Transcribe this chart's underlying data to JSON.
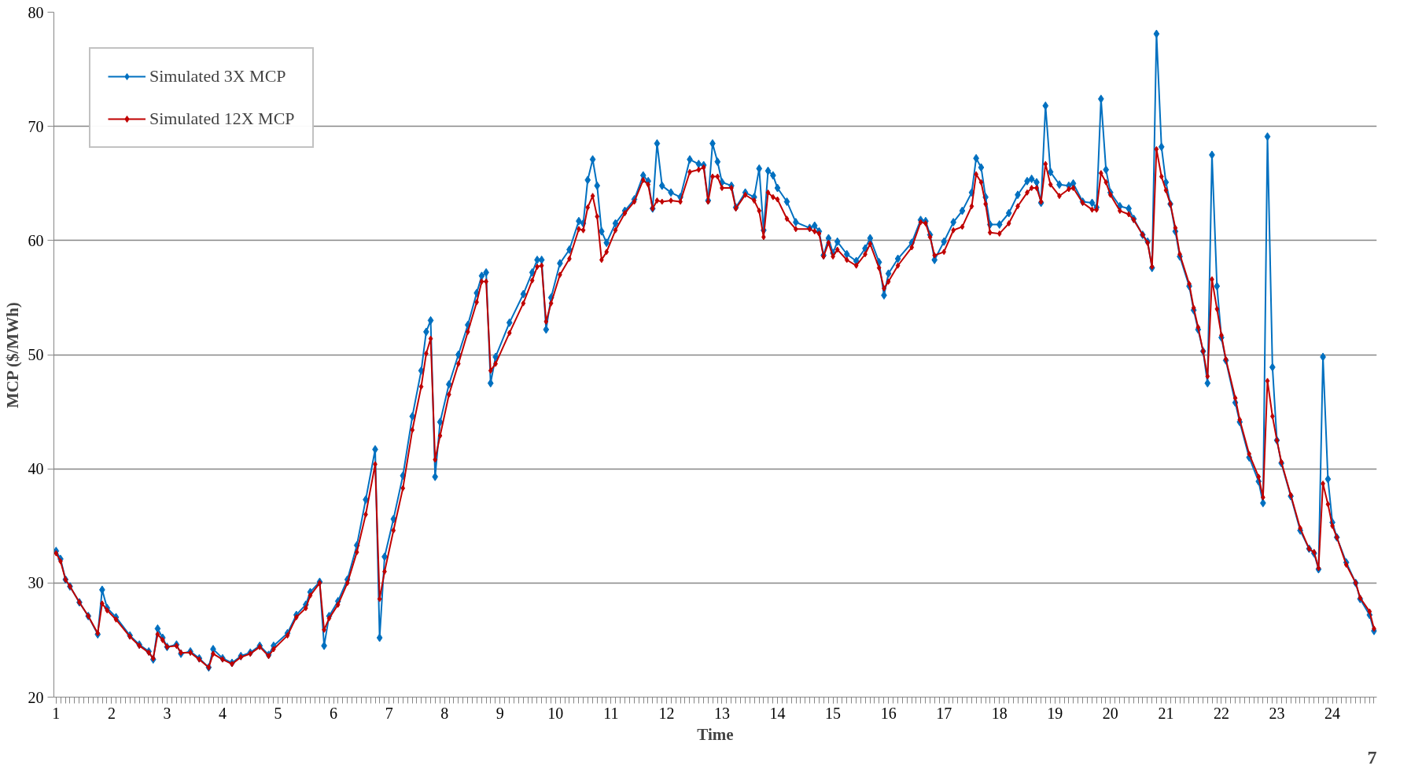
{
  "chart_data": {
    "type": "line",
    "xlabel": "Time",
    "ylabel": "MCP ($/MWh)",
    "annotations": [
      "7"
    ],
    "xlim": [
      0.96,
      24.8
    ],
    "xticks": [
      1,
      2,
      3,
      4,
      5,
      6,
      7,
      8,
      9,
      10,
      11,
      12,
      13,
      14,
      15,
      16,
      17,
      18,
      19,
      20,
      21,
      22,
      23,
      24
    ],
    "ylim": [
      20,
      80
    ],
    "yticks": [
      20,
      30,
      40,
      50,
      60,
      70,
      80
    ],
    "grid": "y",
    "legend": "top left",
    "marker": "diamond",
    "line_style": "solid",
    "x": [
      1.0,
      1.08,
      1.17,
      1.25,
      1.42,
      1.58,
      1.75,
      1.83,
      1.92,
      2.08,
      2.33,
      2.5,
      2.67,
      2.75,
      2.83,
      2.92,
      3.0,
      3.17,
      3.25,
      3.42,
      3.58,
      3.75,
      3.83,
      4.0,
      4.17,
      4.33,
      4.5,
      4.67,
      4.83,
      4.92,
      5.17,
      5.33,
      5.5,
      5.58,
      5.75,
      5.83,
      5.92,
      6.08,
      6.25,
      6.42,
      6.58,
      6.75,
      6.83,
      6.92,
      7.08,
      7.25,
      7.42,
      7.58,
      7.67,
      7.75,
      7.83,
      7.92,
      8.08,
      8.25,
      8.42,
      8.58,
      8.67,
      8.75,
      8.83,
      8.92,
      9.17,
      9.42,
      9.58,
      9.67,
      9.75,
      9.83,
      9.92,
      10.08,
      10.25,
      10.42,
      10.5,
      10.58,
      10.67,
      10.75,
      10.83,
      10.92,
      11.08,
      11.25,
      11.42,
      11.58,
      11.67,
      11.75,
      11.83,
      11.92,
      12.08,
      12.25,
      12.42,
      12.58,
      12.67,
      12.75,
      12.83,
      12.92,
      13.0,
      13.17,
      13.25,
      13.42,
      13.58,
      13.67,
      13.75,
      13.83,
      13.92,
      14.0,
      14.17,
      14.33,
      14.58,
      14.67,
      14.75,
      14.83,
      14.92,
      15.0,
      15.08,
      15.25,
      15.42,
      15.58,
      15.67,
      15.83,
      15.92,
      16.0,
      16.17,
      16.42,
      16.58,
      16.67,
      16.75,
      16.83,
      17.0,
      17.17,
      17.33,
      17.5,
      17.58,
      17.67,
      17.75,
      17.83,
      18.0,
      18.17,
      18.33,
      18.5,
      18.58,
      18.67,
      18.75,
      18.83,
      18.92,
      19.08,
      19.25,
      19.33,
      19.5,
      19.67,
      19.75,
      19.83,
      19.92,
      20.0,
      20.17,
      20.33,
      20.42,
      20.58,
      20.67,
      20.75,
      20.83,
      20.92,
      21.0,
      21.08,
      21.17,
      21.25,
      21.42,
      21.5,
      21.58,
      21.67,
      21.75,
      21.83,
      21.92,
      22.0,
      22.08,
      22.25,
      22.33,
      22.5,
      22.67,
      22.75,
      22.83,
      22.92,
      23.0,
      23.08,
      23.25,
      23.42,
      23.58,
      23.67,
      23.75,
      23.83,
      23.92,
      24.0,
      24.08,
      24.25,
      24.42,
      24.5,
      24.67,
      24.75
    ],
    "series": [
      {
        "name": "Simulated 3X MCP",
        "color": "#0070c0",
        "values": [
          32.8,
          32.1,
          30.3,
          29.7,
          28.3,
          27.1,
          25.5,
          29.4,
          27.8,
          27.0,
          25.4,
          24.6,
          24.0,
          23.3,
          26.0,
          25.2,
          24.4,
          24.6,
          23.8,
          24.0,
          23.4,
          22.6,
          24.2,
          23.4,
          23.0,
          23.6,
          23.9,
          24.5,
          23.7,
          24.5,
          25.6,
          27.2,
          28.1,
          29.2,
          30.1,
          24.5,
          27.1,
          28.4,
          30.3,
          33.3,
          37.3,
          41.7,
          25.2,
          32.3,
          35.6,
          39.4,
          44.6,
          48.6,
          52.0,
          53.0,
          39.3,
          44.1,
          47.4,
          50.0,
          52.6,
          55.4,
          56.9,
          57.2,
          47.5,
          49.8,
          52.8,
          55.3,
          57.2,
          58.3,
          58.3,
          52.2,
          55.0,
          58.0,
          59.2,
          61.7,
          61.5,
          65.3,
          67.1,
          64.8,
          60.8,
          59.8,
          61.5,
          62.6,
          63.6,
          65.7,
          65.2,
          62.8,
          68.5,
          64.8,
          64.2,
          63.8,
          67.1,
          66.7,
          66.6,
          63.5,
          68.5,
          66.9,
          65.1,
          64.8,
          62.9,
          64.2,
          63.8,
          66.3,
          60.9,
          66.1,
          65.7,
          64.6,
          63.4,
          61.6,
          61.1,
          61.3,
          60.8,
          58.7,
          60.2,
          58.9,
          59.9,
          58.8,
          58.2,
          59.3,
          60.2,
          58.1,
          55.2,
          57.1,
          58.4,
          59.8,
          61.8,
          61.7,
          60.5,
          58.3,
          59.9,
          61.6,
          62.6,
          64.2,
          67.2,
          66.4,
          63.8,
          61.4,
          61.4,
          62.4,
          64.0,
          65.2,
          65.4,
          65.1,
          63.3,
          71.8,
          66.0,
          64.9,
          64.8,
          65.0,
          63.4,
          63.3,
          62.9,
          72.4,
          66.2,
          64.2,
          63.0,
          62.8,
          61.9,
          60.5,
          59.9,
          57.6,
          78.1,
          68.2,
          65.1,
          63.2,
          60.8,
          58.6,
          56.0,
          53.9,
          52.2,
          50.3,
          47.5,
          67.5,
          56.0,
          51.5,
          49.5,
          45.8,
          44.1,
          41.0,
          38.9,
          37.0,
          69.1,
          48.9,
          42.5,
          40.5,
          37.6,
          34.6,
          33.0,
          32.6,
          31.2,
          49.8,
          39.1,
          35.3,
          34.0,
          31.8,
          30.0,
          28.6,
          27.2,
          25.8
        ]
      },
      {
        "name": "Simulated 12X MCP",
        "color": "#c00000",
        "values": [
          32.6,
          31.9,
          30.3,
          29.7,
          28.3,
          27.1,
          25.6,
          28.2,
          27.6,
          26.8,
          25.3,
          24.5,
          23.9,
          23.4,
          25.5,
          25.0,
          24.4,
          24.5,
          23.9,
          23.9,
          23.3,
          22.6,
          23.8,
          23.3,
          22.9,
          23.5,
          23.8,
          24.4,
          23.6,
          24.2,
          25.4,
          27.0,
          27.8,
          28.9,
          30.0,
          25.9,
          26.9,
          28.1,
          30.0,
          32.7,
          36.0,
          40.4,
          28.6,
          31.0,
          34.6,
          38.3,
          43.4,
          47.2,
          50.1,
          51.4,
          40.8,
          42.9,
          46.5,
          49.2,
          52.0,
          54.6,
          56.4,
          56.4,
          48.6,
          49.2,
          51.9,
          54.5,
          56.5,
          57.7,
          57.8,
          52.9,
          54.5,
          57.0,
          58.4,
          61.0,
          60.9,
          62.9,
          63.9,
          62.1,
          58.3,
          59.0,
          60.9,
          62.4,
          63.4,
          65.3,
          64.9,
          62.8,
          63.5,
          63.4,
          63.5,
          63.4,
          66.0,
          66.2,
          66.4,
          63.4,
          65.6,
          65.6,
          64.6,
          64.6,
          62.8,
          64.0,
          63.5,
          62.6,
          60.3,
          64.2,
          63.8,
          63.6,
          61.9,
          61.0,
          61.0,
          60.8,
          60.6,
          58.6,
          59.8,
          58.6,
          59.2,
          58.3,
          57.8,
          58.8,
          59.7,
          57.6,
          55.8,
          56.4,
          57.8,
          59.4,
          61.6,
          61.5,
          60.3,
          58.7,
          59.0,
          60.9,
          61.2,
          63.0,
          65.8,
          65.1,
          63.2,
          60.7,
          60.6,
          61.5,
          63.0,
          64.2,
          64.6,
          64.6,
          63.4,
          66.7,
          64.9,
          63.9,
          64.5,
          64.6,
          63.3,
          62.7,
          62.7,
          65.9,
          65.1,
          64.0,
          62.6,
          62.3,
          61.8,
          60.5,
          59.8,
          57.7,
          68.0,
          65.6,
          64.4,
          63.2,
          61.1,
          58.8,
          56.2,
          54.1,
          52.4,
          50.3,
          48.1,
          56.6,
          54.0,
          51.7,
          49.6,
          46.2,
          44.3,
          41.3,
          39.3,
          37.5,
          47.7,
          44.6,
          42.5,
          40.6,
          37.7,
          34.8,
          33.0,
          32.7,
          31.3,
          38.7,
          36.9,
          35.0,
          34.0,
          31.6,
          30.0,
          28.7,
          27.5,
          26.0
        ]
      }
    ]
  }
}
